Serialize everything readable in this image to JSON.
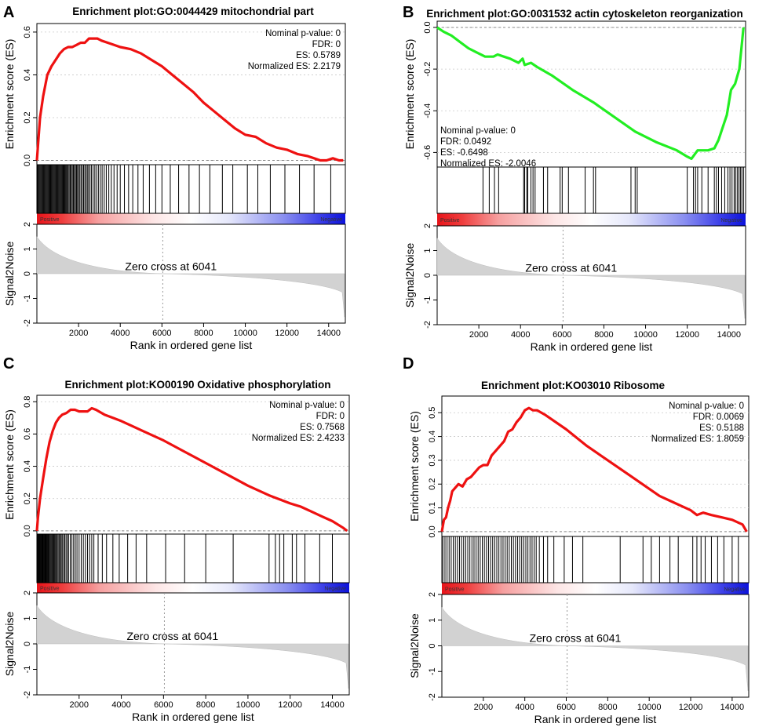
{
  "chart_data": [
    {
      "panel_label": "A",
      "type": "line",
      "title": "Enrichment plot:GO:0044429 mitochondrial part",
      "line_color": "#ee1111",
      "stats": [
        "Nominal p-value: 0",
        "FDR: 0",
        "ES: 0.5789",
        "Normalized ES: 2.2179"
      ],
      "stats_position": "top-right",
      "ylabel": "Enrichment score (ES)",
      "ylim": [
        -0.02,
        0.64
      ],
      "yticks": [
        0.0,
        0.2,
        0.4,
        0.6
      ],
      "ytick_labels": [
        "0.0",
        "0.2",
        "0.4",
        "0.6"
      ],
      "xlim": [
        0,
        14800
      ],
      "es_curve": {
        "x": [
          0,
          60,
          150,
          300,
          500,
          700,
          900,
          1100,
          1300,
          1500,
          1700,
          1900,
          2100,
          2300,
          2500,
          2700,
          2900,
          3100,
          3400,
          3700,
          4000,
          4500,
          5000,
          5500,
          6000,
          6500,
          7000,
          7500,
          8000,
          8500,
          9000,
          9500,
          10000,
          10500,
          11000,
          11500,
          12000,
          12500,
          13000,
          13300,
          13600,
          13900,
          14200,
          14500,
          14700
        ],
        "y": [
          0.0,
          0.08,
          0.2,
          0.3,
          0.4,
          0.44,
          0.47,
          0.5,
          0.52,
          0.53,
          0.53,
          0.54,
          0.55,
          0.55,
          0.57,
          0.57,
          0.57,
          0.56,
          0.55,
          0.54,
          0.53,
          0.52,
          0.5,
          0.47,
          0.44,
          0.4,
          0.36,
          0.32,
          0.27,
          0.23,
          0.19,
          0.15,
          0.12,
          0.11,
          0.08,
          0.06,
          0.05,
          0.03,
          0.02,
          0.01,
          0.0,
          0.0,
          0.01,
          0.0,
          0.0
        ]
      },
      "hits": [
        20,
        60,
        100,
        140,
        180,
        220,
        260,
        300,
        340,
        380,
        420,
        460,
        500,
        540,
        580,
        620,
        660,
        700,
        740,
        780,
        820,
        860,
        900,
        940,
        980,
        1020,
        1060,
        1100,
        1140,
        1180,
        1220,
        1260,
        1300,
        1340,
        1380,
        1420,
        1460,
        1500,
        1550,
        1600,
        1650,
        1700,
        1750,
        1800,
        1850,
        1900,
        1950,
        2000,
        2060,
        2120,
        2180,
        2240,
        2300,
        2360,
        2420,
        2480,
        2550,
        2620,
        2700,
        2780,
        2860,
        2950,
        3040,
        3130,
        3230,
        3330,
        3450,
        3570,
        3700,
        3850,
        4000,
        4200,
        4400,
        4600,
        4850,
        5100,
        5400,
        5700,
        6000,
        6400,
        6800,
        7300,
        7800,
        8300,
        8900,
        9400,
        10100,
        10600,
        11200,
        11900,
        12600,
        13300,
        14100
      ],
      "ranked_bar_labels": [
        "Positive",
        "Negative"
      ],
      "rank_ylabel": "Signal2Noise",
      "rank_ylim": [
        -2,
        2
      ],
      "rank_yticks": [
        -2,
        -1,
        0,
        1,
        2
      ],
      "rank_ytick_labels": [
        "-2",
        "-1",
        "0",
        "1",
        "2"
      ],
      "zero_cross": 6041,
      "zero_cross_label": "Zero cross at 6041",
      "xticks": [
        2000,
        4000,
        6000,
        8000,
        10000,
        12000,
        14000
      ],
      "xtick_labels": [
        "2000",
        "4000",
        "6000",
        "8000",
        "10000",
        "12000",
        "14000"
      ],
      "xlabel": "Rank in ordered gene list"
    },
    {
      "panel_label": "B",
      "type": "line",
      "title": "Enrichment plot:GO:0031532 actin cytoskeleton reorganization",
      "line_color": "#22ee22",
      "stats": [
        "Nominal p-value: 0",
        "FDR: 0.0492",
        "ES: -0.6498",
        "Normalized ES: -2.0046"
      ],
      "stats_position": "bottom-left",
      "ylabel": "Enrichment score (ES)",
      "ylim": [
        -0.67,
        0.03
      ],
      "yticks": [
        0.0,
        -0.2,
        -0.4,
        -0.6
      ],
      "ytick_labels": [
        "0.0",
        "-0.2",
        "-0.4",
        "-0.6"
      ],
      "xlim": [
        0,
        14800
      ],
      "es_curve": {
        "x": [
          0,
          300,
          700,
          1100,
          1500,
          1900,
          2300,
          2700,
          2900,
          3200,
          3500,
          3900,
          4100,
          4200,
          4500,
          4800,
          5500,
          6500,
          7500,
          8500,
          9500,
          10500,
          11500,
          12000,
          12200,
          12500,
          13000,
          13300,
          13500,
          13700,
          13900,
          14100,
          14300,
          14500,
          14600,
          14700
        ],
        "y": [
          0.0,
          -0.02,
          -0.04,
          -0.07,
          -0.1,
          -0.12,
          -0.14,
          -0.14,
          -0.13,
          -0.14,
          -0.15,
          -0.17,
          -0.15,
          -0.18,
          -0.17,
          -0.19,
          -0.23,
          -0.3,
          -0.36,
          -0.43,
          -0.5,
          -0.55,
          -0.59,
          -0.62,
          -0.63,
          -0.59,
          -0.59,
          -0.58,
          -0.54,
          -0.48,
          -0.42,
          -0.3,
          -0.27,
          -0.2,
          -0.1,
          0.0
        ]
      },
      "hits": [
        2200,
        2500,
        2750,
        2950,
        4150,
        4200,
        4300,
        4350,
        4500,
        4600,
        4700,
        5100,
        5300,
        5900,
        6000,
        6300,
        7100,
        7500,
        7600,
        9300,
        9500,
        9600,
        12000,
        12300,
        12400,
        12500,
        12700,
        13000,
        13300,
        13400,
        13500,
        13650,
        13800,
        13950,
        14050,
        14150,
        14250,
        14320,
        14400,
        14480,
        14550,
        14620,
        14700
      ],
      "ranked_bar_labels": [
        "Positive",
        "Negative"
      ],
      "rank_ylabel": "Signal2Noise",
      "rank_ylim": [
        -2,
        2
      ],
      "rank_yticks": [
        -2,
        -1,
        0,
        1,
        2
      ],
      "rank_ytick_labels": [
        "-2",
        "-1",
        "0",
        "1",
        "2"
      ],
      "zero_cross": 6041,
      "zero_cross_label": "Zero cross at 6041",
      "xticks": [
        2000,
        4000,
        6000,
        8000,
        10000,
        12000,
        14000
      ],
      "xtick_labels": [
        "2000",
        "4000",
        "6000",
        "8000",
        "10000",
        "12000",
        "14000"
      ],
      "xlabel": "Rank in ordered gene list"
    },
    {
      "panel_label": "C",
      "type": "line",
      "title": "Enrichment plot:KO00190 Oxidative phosphorylation",
      "line_color": "#ee1111",
      "stats": [
        "Nominal p-value: 0",
        "FDR: 0",
        "ES: 0.7568",
        "Normalized ES: 2.4233"
      ],
      "stats_position": "top-right",
      "ylabel": "Enrichment score (ES)",
      "ylim": [
        -0.02,
        0.84
      ],
      "yticks": [
        0.0,
        0.2,
        0.4,
        0.6,
        0.8
      ],
      "ytick_labels": [
        "0.0",
        "0.2",
        "0.4",
        "0.6",
        "0.8"
      ],
      "xlim": [
        0,
        14800
      ],
      "es_curve": {
        "x": [
          0,
          50,
          150,
          300,
          450,
          600,
          750,
          900,
          1050,
          1200,
          1400,
          1600,
          1800,
          2000,
          2200,
          2400,
          2600,
          2800,
          3200,
          3600,
          4000,
          4500,
          5000,
          6000,
          7000,
          8000,
          9000,
          10000,
          11000,
          12000,
          12500,
          13000,
          13500,
          14000,
          14500,
          14700
        ],
        "y": [
          0.0,
          0.08,
          0.2,
          0.33,
          0.45,
          0.55,
          0.62,
          0.67,
          0.7,
          0.72,
          0.73,
          0.75,
          0.75,
          0.74,
          0.74,
          0.74,
          0.76,
          0.75,
          0.72,
          0.7,
          0.68,
          0.65,
          0.62,
          0.56,
          0.49,
          0.42,
          0.35,
          0.28,
          0.22,
          0.17,
          0.15,
          0.12,
          0.09,
          0.06,
          0.02,
          0.0
        ]
      },
      "hits": [
        20,
        50,
        80,
        110,
        140,
        170,
        200,
        230,
        260,
        290,
        320,
        350,
        380,
        410,
        440,
        470,
        500,
        540,
        580,
        620,
        660,
        700,
        740,
        780,
        820,
        860,
        900,
        950,
        1000,
        1050,
        1100,
        1150,
        1200,
        1260,
        1320,
        1380,
        1440,
        1500,
        1580,
        1660,
        1740,
        1820,
        1900,
        2000,
        2100,
        2200,
        2300,
        2400,
        2500,
        2600,
        2700,
        2900,
        3100,
        3300,
        3600,
        3900,
        4300,
        4700,
        5200,
        6100,
        7000,
        8000,
        9300,
        11000,
        11300,
        11500,
        11700,
        12100,
        12300,
        12700,
        13400,
        14000
      ],
      "ranked_bar_labels": [
        "Positive",
        "Negative"
      ],
      "rank_ylabel": "Signal2Noise",
      "rank_ylim": [
        -2,
        2
      ],
      "rank_yticks": [
        -2,
        -1,
        0,
        1,
        2
      ],
      "rank_ytick_labels": [
        "-2",
        "-1",
        "0",
        "1",
        "2"
      ],
      "zero_cross": 6041,
      "zero_cross_label": "Zero cross at 6041",
      "xticks": [
        2000,
        4000,
        6000,
        8000,
        10000,
        12000,
        14000
      ],
      "xtick_labels": [
        "2000",
        "4000",
        "6000",
        "8000",
        "10000",
        "12000",
        "14000"
      ],
      "xlabel": "Rank in ordered gene list"
    },
    {
      "panel_label": "D",
      "type": "line",
      "title": "Enrichment plot:KO03010 Ribosome",
      "line_color": "#ee1111",
      "stats": [
        "Nominal p-value: 0",
        "FDR: 0.0069",
        "ES: 0.5188",
        "Normalized ES: 1.8059"
      ],
      "stats_position": "top-right",
      "ylabel": "Enrichment score (ES)",
      "ylim": [
        -0.02,
        0.57
      ],
      "yticks": [
        0.0,
        0.1,
        0.2,
        0.3,
        0.4,
        0.5
      ],
      "ytick_labels": [
        "0.0",
        "0.1",
        "0.2",
        "0.3",
        "0.4",
        "0.5"
      ],
      "xlim": [
        0,
        14800
      ],
      "es_curve": {
        "x": [
          0,
          100,
          200,
          300,
          400,
          500,
          600,
          800,
          1000,
          1200,
          1400,
          1600,
          1800,
          2000,
          2200,
          2400,
          2600,
          2800,
          3000,
          3200,
          3400,
          3600,
          3800,
          4000,
          4200,
          4400,
          4600,
          5000,
          6000,
          7000,
          8000,
          9000,
          10000,
          10500,
          11000,
          11500,
          12000,
          12300,
          12600,
          13000,
          13500,
          14000,
          14500,
          14700
        ],
        "y": [
          0.0,
          0.05,
          0.06,
          0.1,
          0.13,
          0.17,
          0.18,
          0.2,
          0.19,
          0.22,
          0.23,
          0.25,
          0.27,
          0.28,
          0.28,
          0.32,
          0.34,
          0.36,
          0.38,
          0.42,
          0.43,
          0.46,
          0.48,
          0.51,
          0.52,
          0.51,
          0.51,
          0.49,
          0.43,
          0.36,
          0.3,
          0.24,
          0.18,
          0.15,
          0.13,
          0.11,
          0.09,
          0.07,
          0.08,
          0.07,
          0.06,
          0.05,
          0.03,
          0.0
        ]
      },
      "hits": [
        50,
        150,
        250,
        350,
        450,
        550,
        650,
        750,
        850,
        950,
        1050,
        1150,
        1250,
        1350,
        1450,
        1550,
        1650,
        1750,
        1850,
        1950,
        2050,
        2150,
        2250,
        2350,
        2450,
        2550,
        2650,
        2750,
        2850,
        2950,
        3050,
        3150,
        3250,
        3350,
        3450,
        3550,
        3650,
        3750,
        3850,
        3950,
        4050,
        4150,
        4250,
        4350,
        4450,
        4550,
        4700,
        4900,
        5100,
        5400,
        5900,
        6300,
        6800,
        8600,
        9700,
        10100,
        10500,
        11000,
        11400,
        12100,
        12300,
        12500,
        12700,
        13000,
        13300,
        13600,
        14000,
        14300
      ],
      "ranked_bar_labels": [
        "Positive",
        "Negative"
      ],
      "rank_ylabel": "Signal2Noise",
      "rank_ylim": [
        -2,
        2
      ],
      "rank_yticks": [
        -2,
        -1,
        0,
        1,
        2
      ],
      "rank_ytick_labels": [
        "-2",
        "-1",
        "0",
        "1",
        "2"
      ],
      "zero_cross": 6041,
      "zero_cross_label": "Zero cross at 6041",
      "xticks": [
        2000,
        4000,
        6000,
        8000,
        10000,
        12000,
        14000
      ],
      "xtick_labels": [
        "2000",
        "4000",
        "6000",
        "8000",
        "10000",
        "12000",
        "14000"
      ],
      "xlabel": "Rank in ordered gene list"
    }
  ]
}
